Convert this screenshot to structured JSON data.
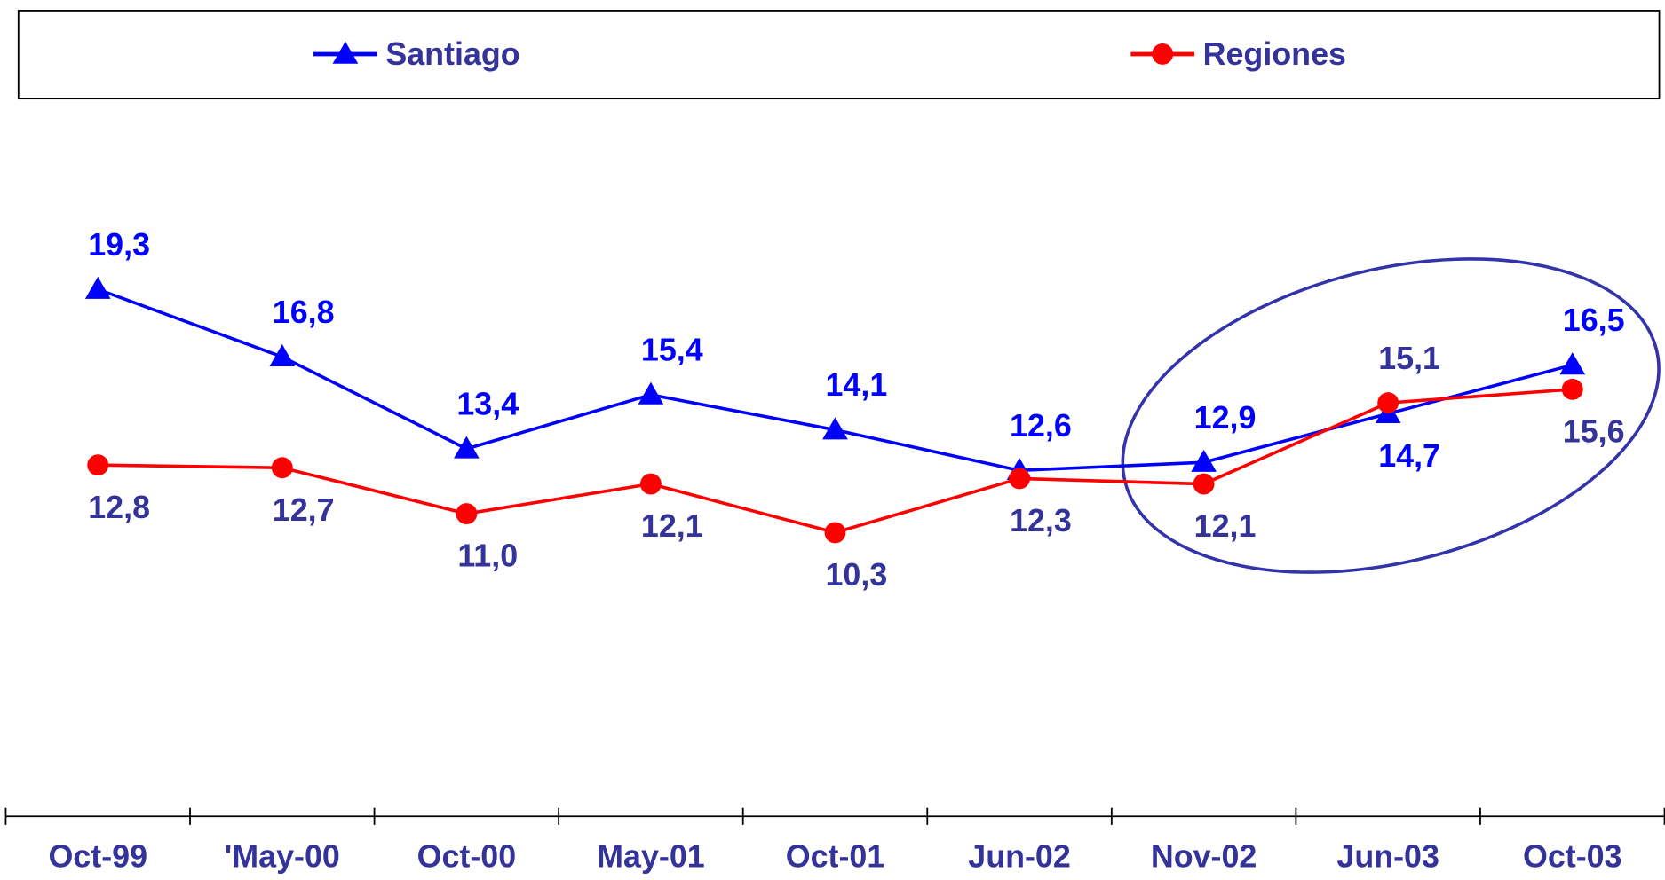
{
  "chart_data": {
    "type": "line",
    "categories": [
      "Oct-99",
      "'May-00",
      "Oct-00",
      "May-01",
      "Oct-01",
      "Jun-02",
      "Nov-02",
      "Jun-03",
      "Oct-03"
    ],
    "series": [
      {
        "name": "Santiago",
        "color": "#0000ff",
        "marker": "triangle",
        "label_color": "#0000ff",
        "values": [
          19.3,
          16.8,
          13.4,
          15.4,
          14.1,
          12.6,
          12.9,
          14.7,
          16.5
        ],
        "value_labels": [
          "19,3",
          "16,8",
          "13,4",
          "15,4",
          "14,1",
          "12,6",
          "12,9",
          "14,7",
          "16,5"
        ]
      },
      {
        "name": "Regiones",
        "color": "#ff0000",
        "marker": "circle",
        "label_color": "#333399",
        "values": [
          12.8,
          12.7,
          11.0,
          12.1,
          10.3,
          12.3,
          12.1,
          15.1,
          15.6
        ],
        "value_labels": [
          "12,8",
          "12,7",
          "11,0",
          "12,1",
          "10,3",
          "12,3",
          "12,1",
          "15,1",
          "15,6"
        ]
      }
    ],
    "ylim": [
      0,
      26
    ],
    "legend": "top"
  }
}
